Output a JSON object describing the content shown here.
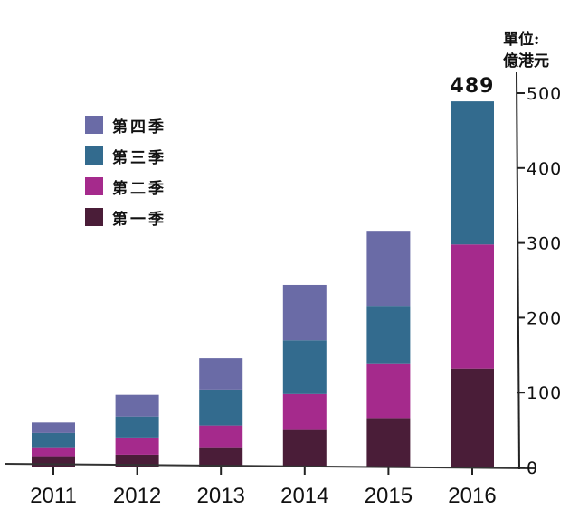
{
  "chart_data": {
    "type": "bar",
    "stacked": true,
    "unit_label": [
      "單位:",
      "億港元"
    ],
    "categories": [
      "2011",
      "2012",
      "2013",
      "2014",
      "2015",
      "2016"
    ],
    "series": [
      {
        "name": "第一季",
        "color": "#4a1d38",
        "values": [
          15,
          17,
          27,
          50,
          66,
          132
        ]
      },
      {
        "name": "第二季",
        "color": "#a52a8c",
        "values": [
          12,
          23,
          29,
          48,
          72,
          166
        ]
      },
      {
        "name": "第三季",
        "color": "#336b8e",
        "values": [
          19,
          28,
          48,
          72,
          78,
          191
        ]
      },
      {
        "name": "第四季",
        "color": "#6a6ba6",
        "values": [
          14,
          29,
          42,
          74,
          99,
          0
        ]
      }
    ],
    "annotations": [
      {
        "category": "2016",
        "text": "489"
      }
    ],
    "ylim": [
      0,
      500
    ],
    "yticks": [
      "0",
      "100",
      "200",
      "300",
      "400",
      "500"
    ],
    "y_axis_side": "right",
    "grid": false,
    "legend_position": "top-left",
    "legend_order": [
      "第四季",
      "第三季",
      "第二季",
      "第一季"
    ]
  }
}
